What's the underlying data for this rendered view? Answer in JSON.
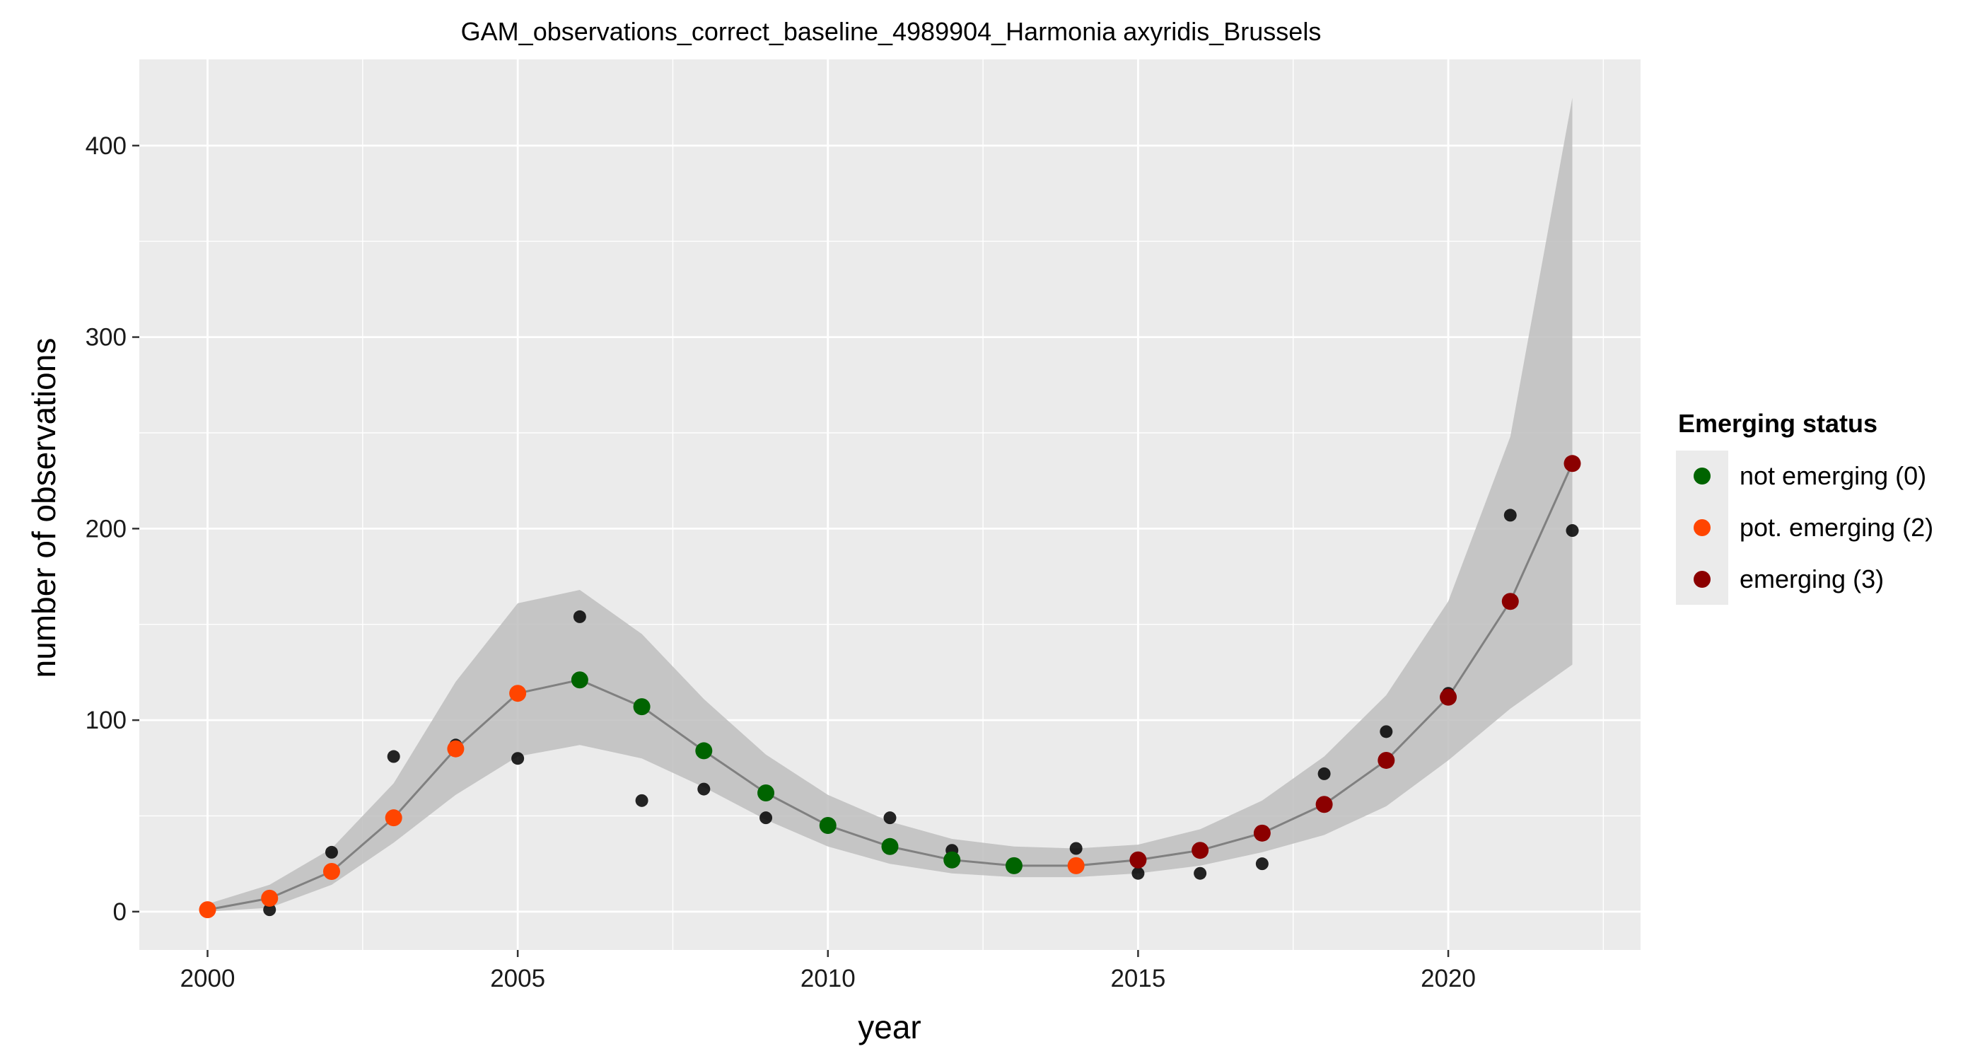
{
  "chart_data": {
    "type": "line",
    "title": "GAM_observations_correct_baseline_4989904_Harmonia axyridis_Brussels",
    "xlabel": "year",
    "ylabel": "number of observations",
    "xlim": [
      1998.9,
      2023.1
    ],
    "ylim": [
      -20,
      445
    ],
    "x_ticks": [
      2000,
      2005,
      2010,
      2015,
      2020
    ],
    "y_ticks": [
      0,
      100,
      200,
      300,
      400
    ],
    "grid": true,
    "legend": {
      "title": "Emerging status",
      "placement": "right",
      "entries": [
        {
          "label": "not emerging (0)",
          "color": "#006400"
        },
        {
          "label": "pot. emerging (2)",
          "color": "#FF4500"
        },
        {
          "label": "emerging (3)",
          "color": "#8B0000"
        }
      ]
    },
    "colors": {
      "panel_background": "#EBEBEB",
      "grid": "#FFFFFF",
      "ribbon": "#BEBEBE",
      "line": "#808080",
      "observed_point": "#000000"
    },
    "fit": {
      "years": [
        2000,
        2001,
        2002,
        2003,
        2004,
        2005,
        2006,
        2007,
        2008,
        2009,
        2010,
        2011,
        2012,
        2013,
        2014,
        2015,
        2016,
        2017,
        2018,
        2019,
        2020,
        2021,
        2022
      ],
      "values": [
        1,
        7,
        21,
        49,
        85,
        114,
        121,
        107,
        84,
        62,
        45,
        34,
        27,
        24,
        24,
        27,
        32,
        41,
        56,
        79,
        112,
        162,
        234
      ],
      "lower": [
        0,
        2,
        14,
        36,
        61,
        81,
        87,
        80,
        65,
        48,
        34,
        25,
        20,
        18,
        18,
        20,
        24,
        31,
        40,
        55,
        79,
        106,
        129
      ],
      "upper": [
        4,
        14,
        33,
        67,
        120,
        161,
        168,
        145,
        111,
        82,
        61,
        47,
        38,
        34,
        33,
        35,
        43,
        58,
        81,
        113,
        162,
        248,
        425
      ],
      "status": [
        2,
        2,
        2,
        2,
        2,
        2,
        0,
        0,
        0,
        0,
        0,
        0,
        0,
        0,
        2,
        3,
        3,
        3,
        3,
        3,
        3,
        3,
        3
      ]
    },
    "observed": {
      "years": [
        2000,
        2001,
        2002,
        2003,
        2004,
        2005,
        2006,
        2007,
        2008,
        2009,
        2010,
        2011,
        2012,
        2013,
        2014,
        2015,
        2016,
        2017,
        2018,
        2019,
        2020,
        2021,
        2022
      ],
      "values": [
        0,
        1,
        31,
        81,
        87,
        80,
        154,
        58,
        64,
        49,
        44,
        49,
        32,
        24,
        33,
        20,
        20,
        25,
        72,
        94,
        114,
        207,
        199
      ]
    }
  }
}
